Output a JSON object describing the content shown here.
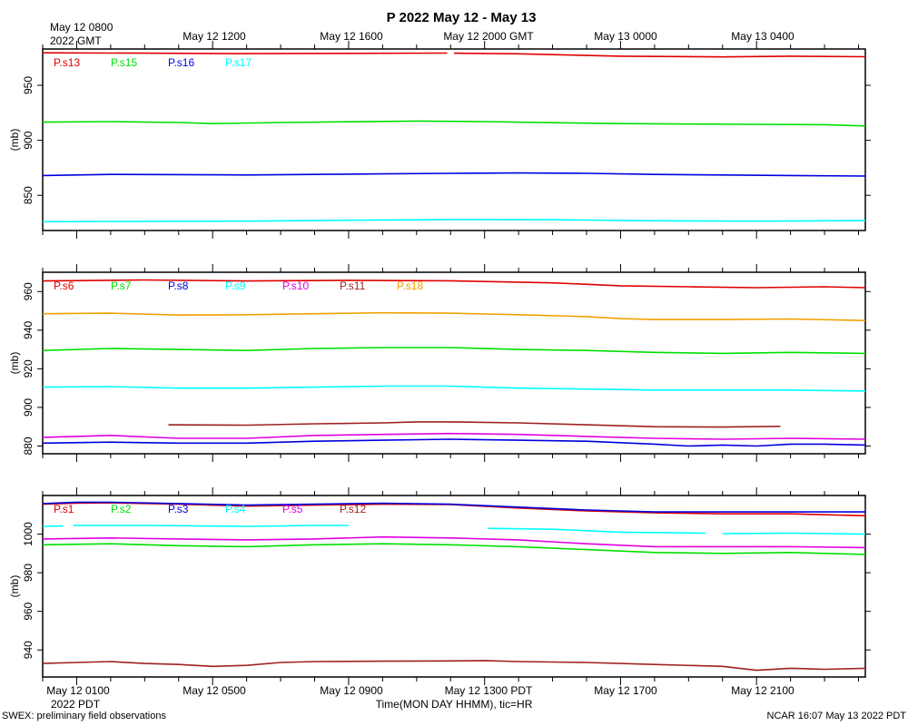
{
  "title": "P 2022 May 12 - May 13",
  "top_axis": {
    "first_label": [
      "May 12 0800",
      "2022 GMT"
    ],
    "labels": [
      "May 12 1200",
      "May 12 1600",
      "May 12 2000 GMT",
      "May 13 0000",
      "May 13 0400"
    ]
  },
  "bottom_axis": {
    "first_label": [
      "May 12 0100",
      "2022 PDT"
    ],
    "labels": [
      "May 12 0500",
      "May 12 0900",
      "May 12 1300 PDT",
      "May 12 1700",
      "May 12 2100"
    ],
    "xlabel": "Time(MON DAY HHMM), tic=HR"
  },
  "footer": {
    "left": "SWEX: preliminary field observations",
    "right": "NCAR 16:07 May 13 2022 PDT"
  },
  "chart_data": [
    {
      "type": "line",
      "ylabel": "(mb)",
      "ylim": [
        818,
        983
      ],
      "yticks": [
        850,
        900,
        950
      ],
      "x_unit": "hours since May 12 0000 PDT",
      "xlim": [
        0,
        24.2
      ],
      "grid": false,
      "legend": "top-left",
      "series": [
        {
          "name": "P.s13",
          "color": "#e00000",
          "segments": [
            {
              "x": [
                0,
                3,
                6,
                9,
                11.9
              ],
              "y": [
                979.5,
                979.2,
                978.8,
                979.0,
                979.3
              ]
            },
            {
              "x": [
                12.1,
                14,
                17,
                20,
                22,
                24.2
              ],
              "y": [
                979.2,
                978.6,
                976.5,
                975.8,
                976.5,
                976.0
              ]
            }
          ]
        },
        {
          "name": "P.s15",
          "color": "#00e000",
          "segments": [
            {
              "x": [
                0,
                2,
                4,
                5,
                7,
                9,
                11,
                13,
                15,
                17,
                19,
                21,
                23,
                24.2
              ],
              "y": [
                916.5,
                917.0,
                916.2,
                915.2,
                916.2,
                916.8,
                917.5,
                917.0,
                916.0,
                915.2,
                914.8,
                914.5,
                914.2,
                913.0
              ]
            }
          ]
        },
        {
          "name": "P.s16",
          "color": "#0000e0",
          "segments": [
            {
              "x": [
                0,
                2,
                4,
                6,
                8,
                10,
                12,
                14,
                16,
                18,
                20,
                22,
                24.2
              ],
              "y": [
                868.0,
                869.0,
                868.8,
                868.5,
                869.0,
                869.5,
                870.0,
                870.3,
                870.0,
                869.0,
                868.5,
                868.0,
                867.5
              ]
            }
          ]
        },
        {
          "name": "P.s17",
          "color": "#00ffff",
          "segments": [
            {
              "x": [
                0,
                3,
                6,
                9,
                12,
                15,
                18,
                21,
                24.2
              ],
              "y": [
                826.0,
                826.3,
                826.5,
                827.3,
                828.0,
                827.8,
                826.8,
                826.5,
                827.0
              ]
            }
          ]
        }
      ]
    },
    {
      "type": "line",
      "ylabel": "(mb)",
      "ylim": [
        876,
        970
      ],
      "yticks": [
        880,
        900,
        920,
        940,
        960
      ],
      "x_unit": "hours since May 12 0000 PDT",
      "xlim": [
        0,
        24.2
      ],
      "grid": false,
      "legend": "top-left",
      "series": [
        {
          "name": "P.s6",
          "color": "#e00000",
          "segments": [
            {
              "x": [
                0,
                3,
                6,
                9,
                12,
                15,
                17,
                19,
                21,
                23,
                24.2
              ],
              "y": [
                965.5,
                966.0,
                965.5,
                965.8,
                965.6,
                964.5,
                963.0,
                962.5,
                962.0,
                962.5,
                962.0
              ]
            }
          ]
        },
        {
          "name": "P.s7",
          "color": "#00e000",
          "segments": [
            {
              "x": [
                0,
                2,
                4,
                6,
                8,
                10,
                12,
                14,
                16,
                18,
                20,
                22,
                24.2
              ],
              "y": [
                929.5,
                930.5,
                930.0,
                929.5,
                930.5,
                931.0,
                931.0,
                930.0,
                929.5,
                928.5,
                928.0,
                928.5,
                928.0
              ]
            }
          ]
        },
        {
          "name": "P.s8",
          "color": "#0000e0",
          "segments": [
            {
              "x": [
                0,
                2,
                4,
                6,
                8,
                10,
                12,
                14,
                16,
                18,
                19,
                20,
                21,
                22,
                23,
                24.2
              ],
              "y": [
                881.5,
                882.0,
                881.5,
                881.5,
                882.5,
                883.0,
                883.5,
                883.0,
                882.5,
                881.0,
                880.0,
                880.5,
                880.0,
                881.0,
                881.0,
                880.5
              ]
            }
          ]
        },
        {
          "name": "P.s9",
          "color": "#00ffff",
          "segments": [
            {
              "x": [
                0,
                2,
                4,
                6,
                8,
                10,
                12,
                14,
                16,
                18,
                20,
                22,
                24.2
              ],
              "y": [
                910.5,
                910.8,
                910.0,
                910.0,
                910.5,
                911.0,
                911.0,
                910.0,
                909.5,
                909.0,
                909.0,
                909.0,
                908.5
              ]
            }
          ]
        },
        {
          "name": "P.s10",
          "color": "#e000e0",
          "segments": [
            {
              "x": [
                0,
                2,
                4,
                6,
                8,
                10,
                12,
                14,
                16,
                18,
                20,
                22,
                24.2
              ],
              "y": [
                884.5,
                885.5,
                884.0,
                884.0,
                885.5,
                886.0,
                886.5,
                886.0,
                885.0,
                884.0,
                883.5,
                884.0,
                883.5
              ]
            }
          ]
        },
        {
          "name": "P.s11",
          "color": "#a02020",
          "segments": [
            {
              "x": [
                3.7,
                6,
                8,
                10,
                11,
                12,
                14,
                16,
                18,
                20,
                21.7
              ],
              "y": [
                891.0,
                890.8,
                891.5,
                892.0,
                892.5,
                892.5,
                892.0,
                891.0,
                890.0,
                889.8,
                890.2
              ]
            }
          ]
        },
        {
          "name": "P.s18",
          "color": "#f0a000",
          "segments": [
            {
              "x": [
                0,
                2,
                4,
                6,
                8,
                10,
                12,
                14,
                16,
                17,
                18,
                20,
                22,
                24.2
              ],
              "y": [
                948.5,
                948.8,
                947.8,
                948.0,
                948.5,
                949.0,
                948.8,
                948.0,
                947.0,
                946.0,
                945.5,
                945.5,
                945.8,
                945.0
              ]
            }
          ]
        }
      ]
    },
    {
      "type": "line",
      "ylabel": "(mb)",
      "ylim": [
        926,
        1020
      ],
      "yticks": [
        940,
        960,
        980,
        1000
      ],
      "x_unit": "hours since May 12 0000 PDT",
      "xlim": [
        0,
        24.2
      ],
      "grid": false,
      "legend": "top-left",
      "series": [
        {
          "name": "P.s1",
          "color": "#e00000",
          "segments": [
            {
              "x": [
                0,
                1,
                2,
                4,
                6,
                8,
                10,
                12,
                14,
                16,
                18,
                20,
                22,
                24.2
              ],
              "y": [
                1015.5,
                1016.0,
                1016.2,
                1015.5,
                1014.5,
                1015.0,
                1015.5,
                1015.3,
                1013.5,
                1012.0,
                1011.0,
                1010.5,
                1010.5,
                1009.5
              ]
            }
          ]
        },
        {
          "name": "P.s2",
          "color": "#00e000",
          "segments": [
            {
              "x": [
                0,
                2,
                4,
                6,
                8,
                10,
                12,
                14,
                16,
                18,
                20,
                22,
                24.2
              ],
              "y": [
                994.5,
                995.0,
                994.0,
                993.5,
                994.5,
                995.0,
                994.5,
                993.5,
                992.0,
                990.5,
                990.0,
                990.5,
                989.5
              ]
            }
          ]
        },
        {
          "name": "P.s3",
          "color": "#0000e0",
          "segments": [
            {
              "x": [
                0,
                1,
                2,
                4,
                6,
                8,
                10,
                12,
                14,
                16,
                18,
                20,
                22,
                24.2
              ],
              "y": [
                1015.8,
                1016.5,
                1016.5,
                1015.8,
                1015.0,
                1015.5,
                1016.0,
                1015.5,
                1014.0,
                1012.5,
                1011.5,
                1011.5,
                1011.5,
                1011.5
              ]
            }
          ]
        },
        {
          "name": "P.s4",
          "color": "#00ffff",
          "segments": [
            {
              "x": [
                0,
                0.6
              ],
              "y": [
                1004.0,
                1004.2
              ]
            },
            {
              "x": [
                0.9,
                3,
                6,
                8,
                9
              ],
              "y": [
                1004.5,
                1004.5,
                1004.0,
                1004.5,
                1004.5
              ]
            },
            {
              "x": [
                13.1,
                15,
                17,
                19.5
              ],
              "y": [
                1003.0,
                1002.5,
                1001.0,
                1000.5
              ]
            },
            {
              "x": [
                20.0,
                22,
                24.2
              ],
              "y": [
                1000.2,
                1000.5,
                1000.0
              ]
            }
          ]
        },
        {
          "name": "P.s5",
          "color": "#e000e0",
          "segments": [
            {
              "x": [
                0,
                2,
                4,
                6,
                8,
                10,
                12,
                14,
                16,
                18,
                20,
                22,
                24.2
              ],
              "y": [
                997.5,
                998.0,
                997.5,
                997.0,
                997.5,
                998.5,
                998.0,
                997.0,
                995.0,
                993.5,
                993.5,
                993.5,
                993.0
              ]
            }
          ]
        },
        {
          "name": "P.s12",
          "color": "#a02020",
          "segments": [
            {
              "x": [
                0,
                1,
                2,
                3,
                4,
                5,
                6,
                7,
                8,
                10,
                12,
                13,
                14,
                16,
                18,
                20,
                21,
                22,
                23,
                24.2
              ],
              "y": [
                933.0,
                933.5,
                934.0,
                933.0,
                932.5,
                931.5,
                932.0,
                933.5,
                934.0,
                934.2,
                934.3,
                934.5,
                934.0,
                933.5,
                932.5,
                931.5,
                929.5,
                930.5,
                930.0,
                930.5
              ]
            }
          ]
        }
      ]
    }
  ]
}
